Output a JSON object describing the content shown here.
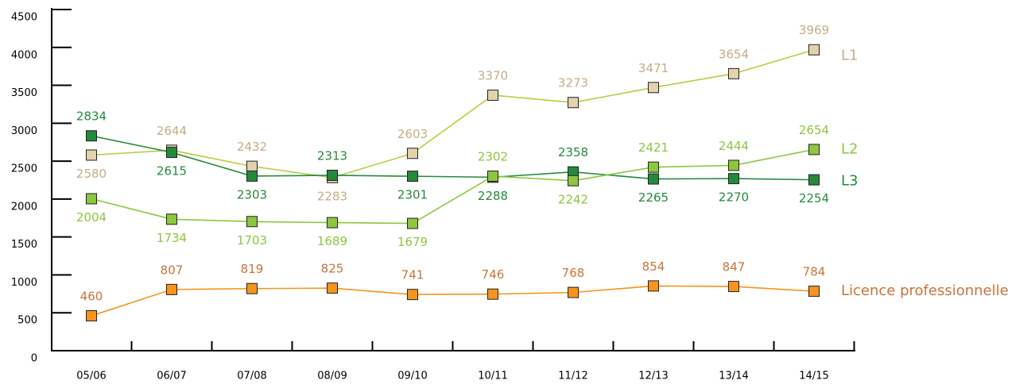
{
  "chart_data": {
    "type": "line",
    "categories": [
      "05/06",
      "06/07",
      "07/08",
      "08/09",
      "09/10",
      "10/11",
      "11/12",
      "12/13",
      "13/14",
      "14/15"
    ],
    "series": [
      {
        "name": "L1",
        "color": "#e2d2ad",
        "line_color": "#bccb3c",
        "text_color": "#c4ad86",
        "values": [
          2580,
          2644,
          2432,
          2283,
          2603,
          3370,
          3273,
          3471,
          3654,
          3969
        ]
      },
      {
        "name": "L3",
        "color": "#238a3c",
        "line_color": "#238a3c",
        "text_color": "#238a3c",
        "values": [
          2834,
          2615,
          2303,
          2313,
          2301,
          2288,
          2358,
          2265,
          2270,
          2254
        ]
      },
      {
        "name": "L2",
        "color": "#8dc63f",
        "line_color": "#8dc63f",
        "text_color": "#8dc63f",
        "values": [
          2004,
          1734,
          1703,
          1689,
          1679,
          2302,
          2242,
          2421,
          2444,
          2654
        ]
      },
      {
        "name": "Licence professionnelle",
        "color": "#f7941d",
        "line_color": "#f7941d",
        "text_color": "#c8743a",
        "values": [
          460,
          807,
          819,
          825,
          741,
          746,
          768,
          854,
          847,
          784
        ]
      }
    ],
    "ylim": [
      0,
      4500
    ],
    "yticks": [
      0,
      500,
      1000,
      1500,
      2000,
      2500,
      3000,
      3500,
      4000,
      4500
    ]
  }
}
